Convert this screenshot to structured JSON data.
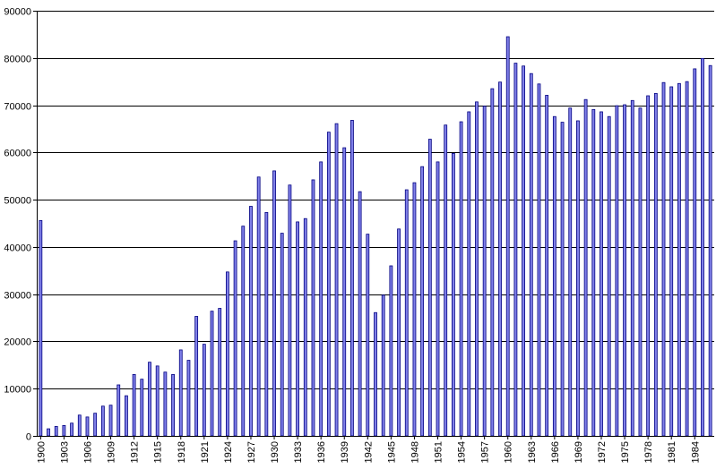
{
  "chart_data": {
    "type": "bar",
    "title": "",
    "xlabel": "",
    "ylabel": "",
    "ylim": [
      0,
      90000
    ],
    "yticks": [
      0,
      10000,
      20000,
      30000,
      40000,
      50000,
      60000,
      70000,
      80000,
      90000
    ],
    "grid": "horizontal",
    "legend": "none",
    "colors": {
      "bar_fill": "#8080e8",
      "bar_edge": "#000080",
      "grid": "#000000",
      "axis": "#000000"
    },
    "categories": [
      "1900",
      "1901",
      "1902",
      "1903",
      "1904",
      "1905",
      "1906",
      "1907",
      "1908",
      "1909",
      "1910",
      "1911",
      "1912",
      "1913",
      "1914",
      "1915",
      "1916",
      "1917",
      "1918",
      "1919",
      "1920",
      "1921",
      "1922",
      "1923",
      "1924",
      "1925",
      "1926",
      "1927",
      "1928",
      "1929",
      "1930",
      "1931",
      "1932",
      "1933",
      "1934",
      "1935",
      "1936",
      "1937",
      "1938",
      "1939",
      "1940",
      "1941",
      "1942",
      "1943",
      "1944",
      "1945",
      "1946",
      "1947",
      "1948",
      "1949",
      "1950",
      "1951",
      "1952",
      "1953",
      "1954",
      "1955",
      "1956",
      "1957",
      "1958",
      "1959",
      "1960",
      "1961",
      "1962",
      "1963",
      "1964",
      "1965",
      "1966",
      "1967",
      "1968",
      "1969",
      "1970",
      "1971",
      "1972",
      "1973",
      "1974",
      "1975",
      "1976",
      "1977",
      "1978",
      "1979",
      "1980",
      "1981",
      "1982",
      "1983",
      "1984",
      "1985",
      "1986"
    ],
    "x_tick_labels": [
      "1900",
      "1903",
      "1906",
      "1909",
      "1912",
      "1915",
      "1918",
      "1921",
      "1924",
      "1927",
      "1930",
      "1933",
      "1936",
      "1939",
      "1942",
      "1945",
      "1948",
      "1951",
      "1954",
      "1957",
      "1960",
      "1963",
      "1966",
      "1969",
      "1972",
      "1975",
      "1978",
      "1981",
      "1984"
    ],
    "values": [
      45600,
      1500,
      2000,
      2200,
      2700,
      4400,
      4000,
      4800,
      6300,
      6500,
      10800,
      8500,
      13000,
      12000,
      15600,
      14800,
      13500,
      13000,
      18200,
      16000,
      25300,
      19400,
      26400,
      27000,
      34700,
      41300,
      44400,
      48600,
      54800,
      47300,
      56100,
      42900,
      53100,
      45300,
      46000,
      54200,
      58000,
      64300,
      66100,
      61000,
      66800,
      51700,
      42700,
      26100,
      29800,
      36000,
      43800,
      52100,
      53600,
      57000,
      62800,
      58000,
      65800,
      59800,
      66500,
      68600,
      70700,
      69800,
      73500,
      74900,
      84500,
      78900,
      78300,
      76700,
      74500,
      72100,
      67600,
      66400,
      69400,
      66700,
      71200,
      69100,
      68600,
      67600,
      69900,
      70100,
      71000,
      69400,
      72000,
      72500,
      74800,
      73900,
      74600,
      75000,
      77700,
      79900,
      78400
    ]
  }
}
